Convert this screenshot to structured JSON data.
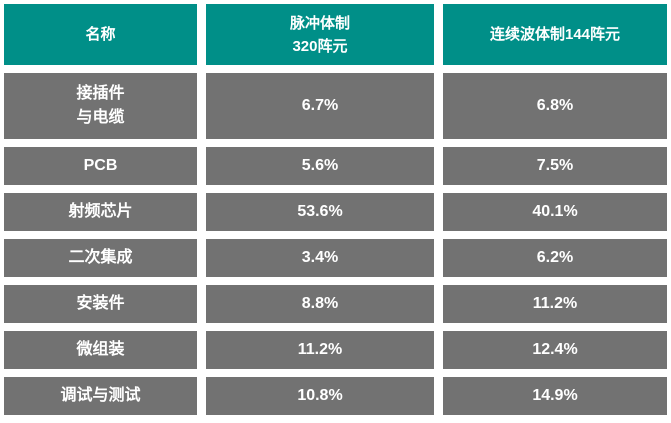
{
  "chart_data": {
    "type": "table",
    "title": "",
    "columns": [
      "名称",
      "脉冲体制320阵元",
      "连续波体制144阵元"
    ],
    "columns_display": [
      "名称",
      "脉冲体制\n320阵元",
      "连续波体制144阵元"
    ],
    "rows": [
      [
        "接插件\n与电缆",
        "6.7%",
        "6.8%"
      ],
      [
        "PCB",
        "5.6%",
        "7.5%"
      ],
      [
        "射频芯片",
        "53.6%",
        "40.1%"
      ],
      [
        "二次集成",
        "3.4%",
        "6.2%"
      ],
      [
        "安装件",
        "8.8%",
        "11.2%"
      ],
      [
        "微组装",
        "11.2%",
        "12.4%"
      ],
      [
        "调试与测试",
        "10.8%",
        "14.9%"
      ]
    ],
    "layout": {
      "grid": "3 columns x 8 rows",
      "legend_position": "none",
      "gridlines": "off"
    }
  },
  "colors": {
    "header_bg": "#008F88",
    "cell_bg": "#727272",
    "cell_text": "#FFFFFF",
    "page_bg": "#FFFFFF"
  }
}
